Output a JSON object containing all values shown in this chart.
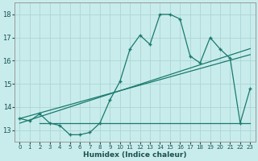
{
  "xlabel": "Humidex (Indice chaleur)",
  "background_color": "#c8ecec",
  "grid_color": "#aed4d4",
  "line_color": "#1a7a6e",
  "x_data": [
    0,
    1,
    2,
    3,
    4,
    5,
    6,
    7,
    8,
    9,
    10,
    11,
    12,
    13,
    14,
    15,
    16,
    17,
    18,
    19,
    20,
    21,
    22,
    23
  ],
  "y_main": [
    13.5,
    13.4,
    13.7,
    13.3,
    13.2,
    12.8,
    12.8,
    12.9,
    13.3,
    14.3,
    15.1,
    16.5,
    17.1,
    16.7,
    18.0,
    18.0,
    17.8,
    16.2,
    15.9,
    17.0,
    16.5,
    16.1,
    13.3,
    14.8
  ],
  "y_trend1": [
    13.5,
    13.62,
    13.74,
    13.86,
    13.98,
    14.1,
    14.22,
    14.34,
    14.46,
    14.58,
    14.7,
    14.82,
    14.94,
    15.06,
    15.18,
    15.3,
    15.42,
    15.54,
    15.66,
    15.78,
    15.9,
    16.02,
    16.14,
    16.26
  ],
  "y_trend2": [
    13.3,
    13.44,
    13.58,
    13.72,
    13.86,
    14.0,
    14.14,
    14.28,
    14.42,
    14.56,
    14.7,
    14.84,
    14.98,
    15.12,
    15.26,
    15.4,
    15.54,
    15.68,
    15.82,
    15.96,
    16.1,
    16.24,
    16.38,
    16.52
  ],
  "y_hline": 13.3,
  "x_hline_start": 2,
  "x_hline_end": 23,
  "ylim": [
    12.5,
    18.5
  ],
  "xlim": [
    -0.5,
    23.5
  ],
  "yticks": [
    13,
    14,
    15,
    16,
    17,
    18
  ],
  "xticks": [
    0,
    1,
    2,
    3,
    4,
    5,
    6,
    7,
    8,
    9,
    10,
    11,
    12,
    13,
    14,
    15,
    16,
    17,
    18,
    19,
    20,
    21,
    22,
    23
  ]
}
